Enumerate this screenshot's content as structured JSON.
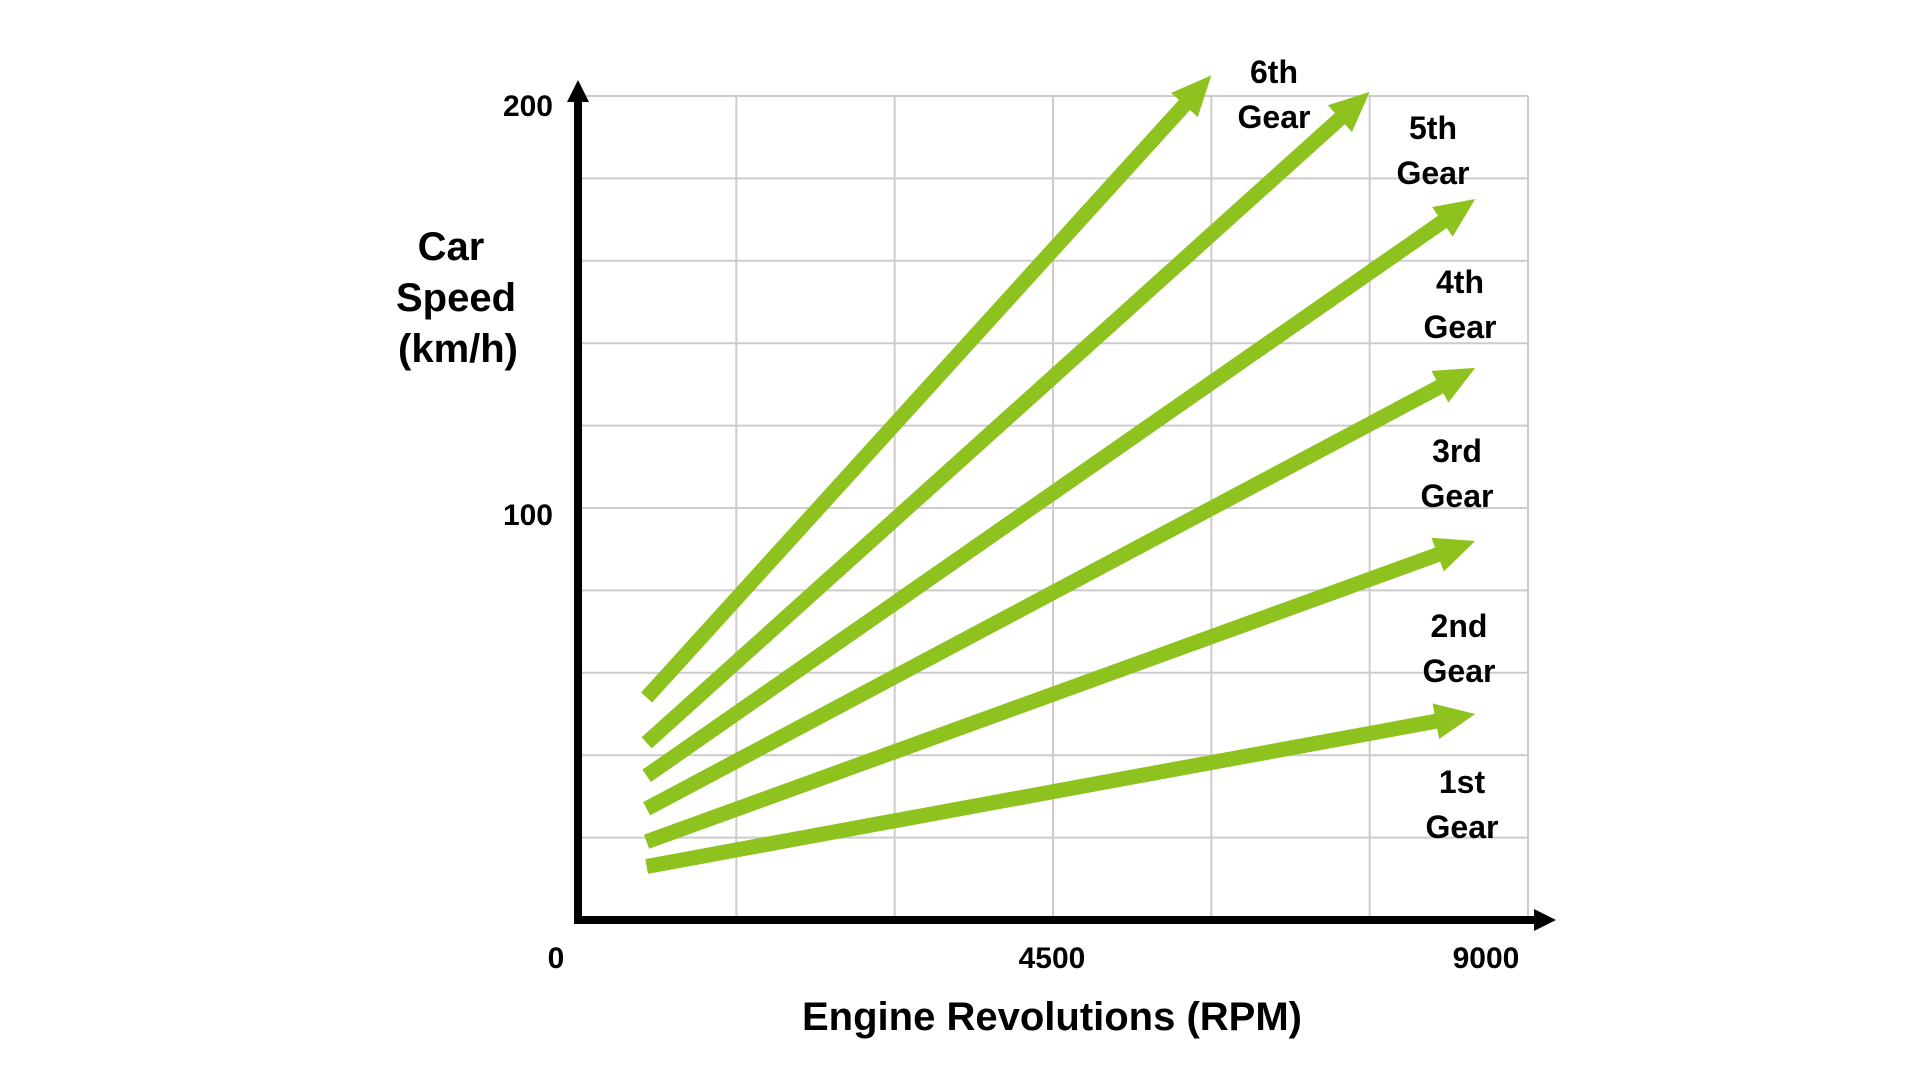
{
  "chart_data": {
    "type": "line",
    "title": "",
    "xlabel": "Engine Revolutions (RPM)",
    "ylabel_lines": [
      "Car",
      "Speed",
      "(km/h)"
    ],
    "xlim": [
      0,
      9000
    ],
    "ylim": [
      0,
      200
    ],
    "x_ticks": [
      "0",
      "4500",
      "9000"
    ],
    "y_ticks": [
      "200",
      "100"
    ],
    "grid": true,
    "line_color": "#8dc21f",
    "series": [
      {
        "name": "1st Gear",
        "label_lines": [
          "1st",
          "Gear"
        ],
        "x": [
          650,
          8500
        ],
        "y": [
          13,
          50
        ]
      },
      {
        "name": "2nd Gear",
        "label_lines": [
          "2nd",
          "Gear"
        ],
        "x": [
          650,
          8500
        ],
        "y": [
          19,
          92
        ]
      },
      {
        "name": "3rd Gear",
        "label_lines": [
          "3rd",
          "Gear"
        ],
        "x": [
          650,
          8500
        ],
        "y": [
          27,
          134
        ]
      },
      {
        "name": "4th Gear",
        "label_lines": [
          "4th",
          "Gear"
        ],
        "x": [
          650,
          8500
        ],
        "y": [
          35,
          175
        ]
      },
      {
        "name": "5th Gear",
        "label_lines": [
          "5th",
          "Gear"
        ],
        "x": [
          650,
          7500
        ],
        "y": [
          43,
          201
        ]
      },
      {
        "name": "6th Gear",
        "label_lines": [
          "6th",
          "Gear"
        ],
        "x": [
          650,
          6000
        ],
        "y": [
          54,
          205
        ]
      }
    ]
  }
}
